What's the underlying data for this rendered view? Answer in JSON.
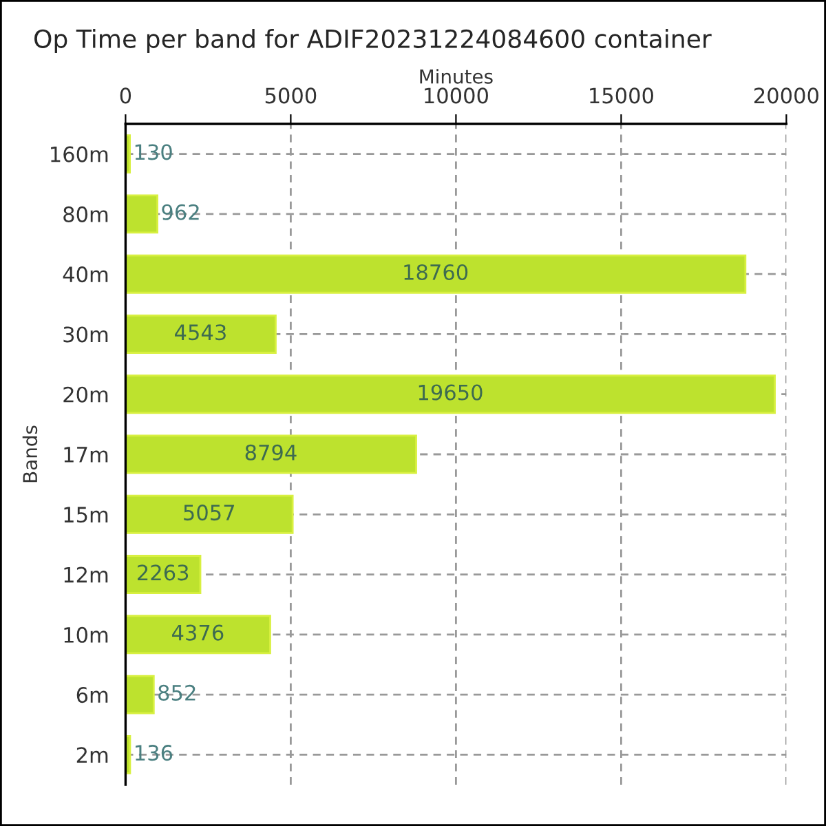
{
  "chart_data": {
    "type": "bar",
    "orientation": "horizontal",
    "title": "Op Time per band for ADIF20231224084600 container",
    "xlabel": "Minutes",
    "ylabel": "Bands",
    "categories": [
      "160m",
      "80m",
      "40m",
      "30m",
      "20m",
      "17m",
      "15m",
      "12m",
      "10m",
      "6m",
      "2m"
    ],
    "values": [
      130,
      962,
      18760,
      4543,
      19650,
      8794,
      5057,
      2263,
      4376,
      852,
      136
    ],
    "color": "#bde22e",
    "xlim": [
      0,
      20000
    ],
    "xticks": [
      0,
      5000,
      10000,
      15000,
      20000
    ],
    "grid": true,
    "data_labels": true
  }
}
